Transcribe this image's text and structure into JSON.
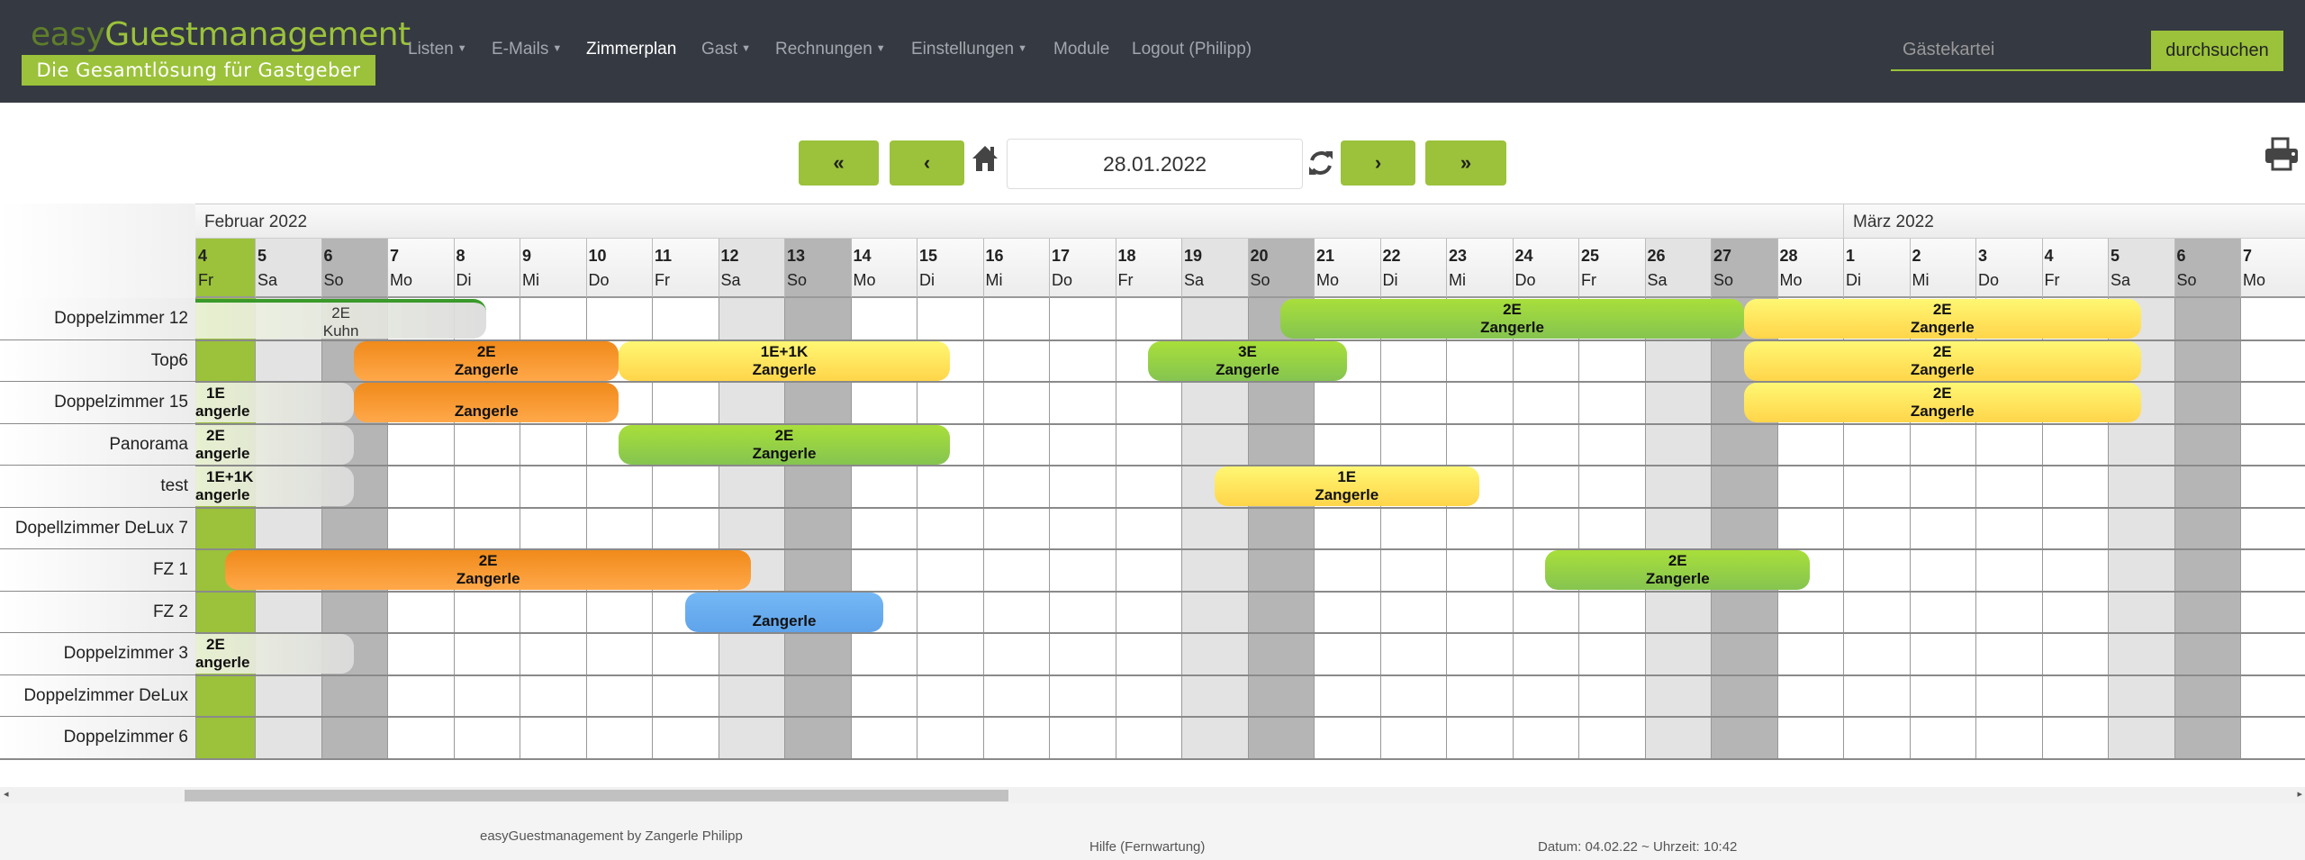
{
  "nav": {
    "logo_easy": "easy",
    "logo_main": "Guestmanagement",
    "logo_tagline": "Die Gesamtlösung für Gastgeber",
    "items": [
      {
        "label": "Listen",
        "dropdown": true
      },
      {
        "label": "E-Mails",
        "dropdown": true
      },
      {
        "label": "Zimmerplan",
        "dropdown": false,
        "active": true
      },
      {
        "label": "Gast",
        "dropdown": true
      },
      {
        "label": "Rechnungen",
        "dropdown": true
      },
      {
        "label": "Einstellungen",
        "dropdown": true
      },
      {
        "label": "Module",
        "dropdown": false
      },
      {
        "label": "Logout (Philipp)",
        "dropdown": false
      }
    ],
    "search_placeholder": "Gästekartei",
    "search_button": "durchsuchen"
  },
  "toolbar": {
    "first": "«",
    "prev": "‹",
    "next": "›",
    "last": "»",
    "date": "28.01.2022",
    "icons": [
      "home-icon",
      "refresh-icon",
      "print-icon"
    ]
  },
  "colors": {
    "accent": "#9bc23a",
    "navbar": "#353942",
    "saturday": "#e3e3e3",
    "sunday": "#b5b5b5",
    "today": "#9bc23a"
  },
  "months": [
    {
      "label": "Februar 2022",
      "first_day": "2022-02-04"
    },
    {
      "label": "März 2022",
      "first_day": "2022-03-01"
    }
  ],
  "days": [
    {
      "date": "2022-02-04",
      "n": "4",
      "w": "Fr",
      "type": "today"
    },
    {
      "date": "2022-02-05",
      "n": "5",
      "w": "Sa",
      "type": "sat"
    },
    {
      "date": "2022-02-06",
      "n": "6",
      "w": "So",
      "type": "sun"
    },
    {
      "date": "2022-02-07",
      "n": "7",
      "w": "Mo"
    },
    {
      "date": "2022-02-08",
      "n": "8",
      "w": "Di"
    },
    {
      "date": "2022-02-09",
      "n": "9",
      "w": "Mi"
    },
    {
      "date": "2022-02-10",
      "n": "10",
      "w": "Do"
    },
    {
      "date": "2022-02-11",
      "n": "11",
      "w": "Fr"
    },
    {
      "date": "2022-02-12",
      "n": "12",
      "w": "Sa",
      "type": "sat"
    },
    {
      "date": "2022-02-13",
      "n": "13",
      "w": "So",
      "type": "sun"
    },
    {
      "date": "2022-02-14",
      "n": "14",
      "w": "Mo"
    },
    {
      "date": "2022-02-15",
      "n": "15",
      "w": "Di"
    },
    {
      "date": "2022-02-16",
      "n": "16",
      "w": "Mi"
    },
    {
      "date": "2022-02-17",
      "n": "17",
      "w": "Do"
    },
    {
      "date": "2022-02-18",
      "n": "18",
      "w": "Fr"
    },
    {
      "date": "2022-02-19",
      "n": "19",
      "w": "Sa",
      "type": "sat"
    },
    {
      "date": "2022-02-20",
      "n": "20",
      "w": "So",
      "type": "sun"
    },
    {
      "date": "2022-02-21",
      "n": "21",
      "w": "Mo"
    },
    {
      "date": "2022-02-22",
      "n": "22",
      "w": "Di"
    },
    {
      "date": "2022-02-23",
      "n": "23",
      "w": "Mi"
    },
    {
      "date": "2022-02-24",
      "n": "24",
      "w": "Do"
    },
    {
      "date": "2022-02-25",
      "n": "25",
      "w": "Fr"
    },
    {
      "date": "2022-02-26",
      "n": "26",
      "w": "Sa",
      "type": "sat"
    },
    {
      "date": "2022-02-27",
      "n": "27",
      "w": "So",
      "type": "sun"
    },
    {
      "date": "2022-02-28",
      "n": "28",
      "w": "Mo"
    },
    {
      "date": "2022-03-01",
      "n": "1",
      "w": "Di"
    },
    {
      "date": "2022-03-02",
      "n": "2",
      "w": "Mi"
    },
    {
      "date": "2022-03-03",
      "n": "3",
      "w": "Do"
    },
    {
      "date": "2022-03-04",
      "n": "4",
      "w": "Fr"
    },
    {
      "date": "2022-03-05",
      "n": "5",
      "w": "Sa",
      "type": "sat"
    },
    {
      "date": "2022-03-06",
      "n": "6",
      "w": "So",
      "type": "sun"
    },
    {
      "date": "2022-03-07",
      "n": "7",
      "w": "Mo"
    }
  ],
  "rooms": [
    "Doppelzimmer 12",
    "Top6",
    "Doppelzimmer 15",
    "Panorama",
    "test",
    "Dopellzimmer DeLux 7",
    "FZ 1",
    "FZ 2",
    "Doppelzimmer 3",
    "Doppelzimmer DeLux",
    "Doppelzimmer 6"
  ],
  "bookings": [
    {
      "room": 0,
      "from": null,
      "to": "2022-02-08",
      "line1": "2E",
      "line2": "Kuhn",
      "color": "grey",
      "light": true
    },
    {
      "room": 0,
      "from": "2022-02-20",
      "to": "2022-02-27",
      "line1": "2E",
      "line2": "Zangerle",
      "color": "green"
    },
    {
      "room": 0,
      "from": "2022-02-27",
      "to": "2022-03-05",
      "line1": "2E",
      "line2": "Zangerle",
      "color": "yellow"
    },
    {
      "room": 1,
      "from": "2022-02-06",
      "to": "2022-02-10",
      "line1": "2E",
      "line2": "Zangerle",
      "color": "orange"
    },
    {
      "room": 1,
      "from": "2022-02-10",
      "to": "2022-02-15",
      "line1": "1E+1K",
      "line2": "Zangerle",
      "color": "yellow"
    },
    {
      "room": 1,
      "from": "2022-02-18",
      "to": "2022-02-21",
      "line1": "3E",
      "line2": "Zangerle",
      "color": "green"
    },
    {
      "room": 1,
      "from": "2022-02-27",
      "to": "2022-03-05",
      "line1": "2E",
      "line2": "Zangerle",
      "color": "yellow"
    },
    {
      "room": 2,
      "from": null,
      "to": "2022-02-06",
      "line1": "1E",
      "line2": "angerle",
      "color": "grey"
    },
    {
      "room": 2,
      "from": "2022-02-06",
      "to": "2022-02-10",
      "line1": "",
      "line2": "Zangerle",
      "color": "orange"
    },
    {
      "room": 2,
      "from": "2022-02-27",
      "to": "2022-03-05",
      "line1": "2E",
      "line2": "Zangerle",
      "color": "yellow"
    },
    {
      "room": 3,
      "from": null,
      "to": "2022-02-06",
      "line1": "2E",
      "line2": "angerle",
      "color": "grey"
    },
    {
      "room": 3,
      "from": "2022-02-10",
      "to": "2022-02-15",
      "line1": "2E",
      "line2": "Zangerle",
      "color": "green"
    },
    {
      "room": 4,
      "from": null,
      "to": "2022-02-06",
      "line1": "1E+1K",
      "line2": "angerle",
      "color": "grey"
    },
    {
      "room": 4,
      "from": "2022-02-19",
      "to": "2022-02-23",
      "line1": "1E",
      "line2": "Zangerle",
      "color": "yellow"
    },
    {
      "room": 6,
      "from": "2022-02-04",
      "to": "2022-02-12",
      "line1": "2E",
      "line2": "Zangerle",
      "color": "orange"
    },
    {
      "room": 6,
      "from": "2022-02-24",
      "to": "2022-02-28",
      "line1": "2E",
      "line2": "Zangerle",
      "color": "green"
    },
    {
      "room": 7,
      "from": "2022-02-11",
      "to": "2022-02-14",
      "line1": "",
      "line2": "Zangerle",
      "color": "blue"
    },
    {
      "room": 8,
      "from": null,
      "to": "2022-02-06",
      "line1": "2E",
      "line2": "angerle",
      "color": "grey"
    }
  ],
  "footer": {
    "credit": "easyGuestmanagement by Zangerle Philipp",
    "help": "Hilfe (Fernwartung)",
    "datetime": "Datum: 04.02.22 ~ Uhrzeit: 10:42"
  }
}
